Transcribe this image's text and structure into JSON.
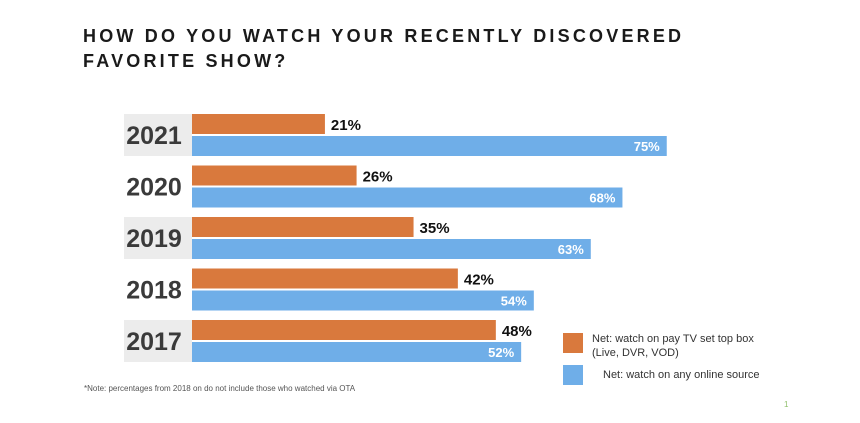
{
  "chart_data": {
    "type": "bar",
    "orientation": "horizontal",
    "title": "HOW DO YOU WATCH YOUR RECENTLY DISCOVERED FAVORITE SHOW?",
    "categories": [
      "2021",
      "2020",
      "2019",
      "2018",
      "2017"
    ],
    "series": [
      {
        "name": "Net: watch on pay TV set top box (Live, DVR, VOD)",
        "values": [
          21,
          26,
          35,
          42,
          48
        ],
        "labels": [
          "21%",
          "26%",
          "35%",
          "42%",
          "48%"
        ],
        "color": "#d9793d"
      },
      {
        "name": "Net: watch on any online source",
        "values": [
          75,
          68,
          63,
          54,
          52
        ],
        "labels": [
          "75%",
          "68%",
          "63%",
          "54%",
          "52%"
        ],
        "color": "#6faee8"
      }
    ],
    "xlim": [
      0,
      100
    ],
    "grid": false,
    "legend_position": "bottom-right",
    "category_band_color": "#ececec",
    "note": "*Note: percentages from 2018 on do not include those who watched via OTA"
  },
  "page_number": "1"
}
